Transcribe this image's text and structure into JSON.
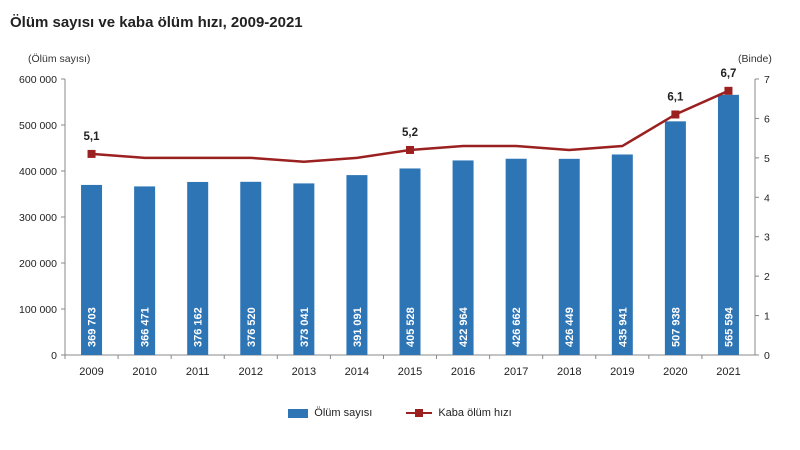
{
  "title": "Ölüm sayısı ve kaba ölüm hızı, 2009-2021",
  "chart_data": {
    "type": "bar",
    "categories": [
      "2009",
      "2010",
      "2011",
      "2012",
      "2013",
      "2014",
      "2015",
      "2016",
      "2017",
      "2018",
      "2019",
      "2020",
      "2021"
    ],
    "series": [
      {
        "name": "Ölüm sayısı",
        "type": "bar",
        "axis": "left",
        "color": "#2e75b6",
        "values": [
          369703,
          366471,
          376162,
          376520,
          373041,
          391091,
          405528,
          422964,
          426662,
          426449,
          435941,
          507938,
          565594
        ],
        "labels": [
          "369 703",
          "366 471",
          "376 162",
          "376 520",
          "373 041",
          "391 091",
          "405 528",
          "422 964",
          "426 662",
          "426 449",
          "435 941",
          "507 938",
          "565 594"
        ]
      },
      {
        "name": "Kaba ölüm hızı",
        "type": "line",
        "axis": "right",
        "color": "#9b2020",
        "values": [
          5.1,
          5.0,
          5.0,
          5.0,
          4.9,
          5.0,
          5.2,
          5.3,
          5.3,
          5.2,
          5.3,
          6.1,
          6.7
        ],
        "point_labels": {
          "0": "5,1",
          "6": "5,2",
          "11": "6,1",
          "12": "6,7"
        }
      }
    ],
    "ylabel_left": "(Ölüm sayısı)",
    "ylabel_right": "(Binde)",
    "ylim_left": [
      0,
      600000
    ],
    "ylim_right": [
      0,
      7
    ],
    "yticks_left": [
      "0",
      "100 000",
      "200 000",
      "300 000",
      "400 000",
      "500 000",
      "600 000"
    ],
    "yticks_right": [
      "0",
      "1",
      "2",
      "3",
      "4",
      "5",
      "6",
      "7"
    ],
    "grid": false,
    "legend_position": "bottom"
  }
}
